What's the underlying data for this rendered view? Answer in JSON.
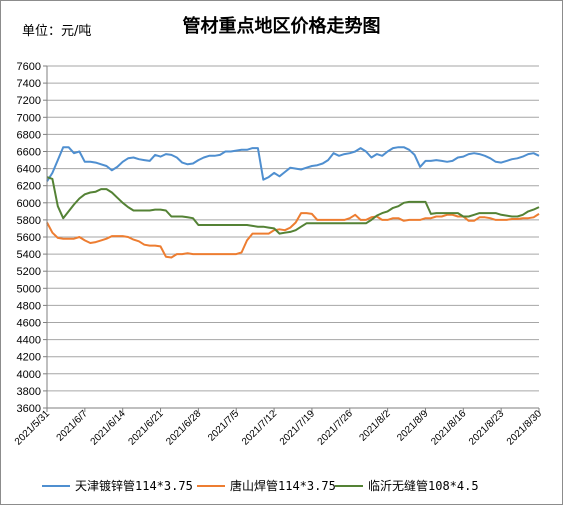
{
  "chart_data": {
    "type": "line",
    "title": "管材重点地区价格走势图",
    "unit_label": "单位：元/吨",
    "ylim": [
      3600,
      7600
    ],
    "y_step": 200,
    "x_tick_labels": [
      "2021/5/31",
      "2021/6/7",
      "2021/6/14",
      "2021/6/21",
      "2021/6/28",
      "2021/7/5",
      "2021/7/12",
      "2021/7/19",
      "2021/7/26",
      "2021/8/2",
      "2021/8/9",
      "2021/8/16",
      "2021/8/23",
      "2021/8/30"
    ],
    "x_range_days": [
      0,
      91
    ],
    "grid": "horizontal",
    "legend_position": "bottom",
    "series": [
      {
        "name": "天津镀锌管114*3.75",
        "color": "#4f8fd0",
        "points": [
          [
            0,
            6250
          ],
          [
            1,
            6350
          ],
          [
            2,
            6500
          ],
          [
            3,
            6650
          ],
          [
            4,
            6650
          ],
          [
            5,
            6580
          ],
          [
            6,
            6600
          ],
          [
            7,
            6480
          ],
          [
            8,
            6480
          ],
          [
            9,
            6470
          ],
          [
            10,
            6450
          ],
          [
            11,
            6430
          ],
          [
            12,
            6380
          ],
          [
            13,
            6420
          ],
          [
            14,
            6480
          ],
          [
            15,
            6520
          ],
          [
            16,
            6530
          ],
          [
            17,
            6510
          ],
          [
            18,
            6500
          ],
          [
            19,
            6490
          ],
          [
            20,
            6560
          ],
          [
            21,
            6540
          ],
          [
            22,
            6570
          ],
          [
            23,
            6560
          ],
          [
            24,
            6530
          ],
          [
            25,
            6470
          ],
          [
            26,
            6450
          ],
          [
            27,
            6460
          ],
          [
            28,
            6500
          ],
          [
            29,
            6530
          ],
          [
            30,
            6550
          ],
          [
            31,
            6550
          ],
          [
            32,
            6560
          ],
          [
            33,
            6600
          ],
          [
            34,
            6600
          ],
          [
            35,
            6610
          ],
          [
            36,
            6620
          ],
          [
            37,
            6620
          ],
          [
            38,
            6640
          ],
          [
            39,
            6640
          ],
          [
            40,
            6270
          ],
          [
            41,
            6300
          ],
          [
            42,
            6350
          ],
          [
            43,
            6310
          ],
          [
            44,
            6360
          ],
          [
            45,
            6410
          ],
          [
            46,
            6400
          ],
          [
            47,
            6390
          ],
          [
            48,
            6410
          ],
          [
            49,
            6430
          ],
          [
            50,
            6440
          ],
          [
            51,
            6460
          ],
          [
            52,
            6500
          ],
          [
            53,
            6580
          ],
          [
            54,
            6550
          ],
          [
            55,
            6570
          ],
          [
            56,
            6580
          ],
          [
            57,
            6600
          ],
          [
            58,
            6640
          ],
          [
            59,
            6600
          ],
          [
            60,
            6530
          ],
          [
            61,
            6570
          ],
          [
            62,
            6550
          ],
          [
            63,
            6600
          ],
          [
            64,
            6640
          ],
          [
            65,
            6650
          ],
          [
            66,
            6650
          ],
          [
            67,
            6620
          ],
          [
            68,
            6560
          ],
          [
            69,
            6420
          ],
          [
            70,
            6490
          ],
          [
            71,
            6490
          ],
          [
            72,
            6500
          ],
          [
            73,
            6490
          ],
          [
            74,
            6480
          ],
          [
            75,
            6490
          ],
          [
            76,
            6530
          ],
          [
            77,
            6540
          ],
          [
            78,
            6570
          ],
          [
            79,
            6580
          ],
          [
            80,
            6570
          ],
          [
            81,
            6550
          ],
          [
            82,
            6520
          ],
          [
            83,
            6480
          ],
          [
            84,
            6470
          ],
          [
            85,
            6490
          ],
          [
            86,
            6510
          ],
          [
            87,
            6520
          ],
          [
            88,
            6540
          ],
          [
            89,
            6570
          ],
          [
            90,
            6580
          ],
          [
            91,
            6550
          ]
        ]
      },
      {
        "name": "唐山焊管114*3.75",
        "color": "#ed7d31",
        "points": [
          [
            0,
            5770
          ],
          [
            1,
            5650
          ],
          [
            2,
            5590
          ],
          [
            3,
            5580
          ],
          [
            4,
            5580
          ],
          [
            5,
            5580
          ],
          [
            6,
            5600
          ],
          [
            7,
            5560
          ],
          [
            8,
            5530
          ],
          [
            9,
            5540
          ],
          [
            10,
            5560
          ],
          [
            11,
            5580
          ],
          [
            12,
            5610
          ],
          [
            13,
            5610
          ],
          [
            14,
            5610
          ],
          [
            15,
            5600
          ],
          [
            16,
            5570
          ],
          [
            17,
            5550
          ],
          [
            18,
            5510
          ],
          [
            19,
            5500
          ],
          [
            20,
            5500
          ],
          [
            21,
            5490
          ],
          [
            22,
            5370
          ],
          [
            23,
            5360
          ],
          [
            24,
            5400
          ],
          [
            25,
            5400
          ],
          [
            26,
            5410
          ],
          [
            27,
            5400
          ],
          [
            28,
            5400
          ],
          [
            29,
            5400
          ],
          [
            30,
            5400
          ],
          [
            31,
            5400
          ],
          [
            32,
            5400
          ],
          [
            33,
            5400
          ],
          [
            34,
            5400
          ],
          [
            35,
            5400
          ],
          [
            36,
            5420
          ],
          [
            37,
            5560
          ],
          [
            38,
            5640
          ],
          [
            39,
            5640
          ],
          [
            40,
            5640
          ],
          [
            41,
            5640
          ],
          [
            42,
            5680
          ],
          [
            43,
            5690
          ],
          [
            44,
            5680
          ],
          [
            45,
            5710
          ],
          [
            46,
            5770
          ],
          [
            47,
            5880
          ],
          [
            48,
            5880
          ],
          [
            49,
            5870
          ],
          [
            50,
            5800
          ],
          [
            51,
            5800
          ],
          [
            52,
            5800
          ],
          [
            53,
            5800
          ],
          [
            54,
            5800
          ],
          [
            55,
            5800
          ],
          [
            56,
            5820
          ],
          [
            57,
            5860
          ],
          [
            58,
            5800
          ],
          [
            59,
            5800
          ],
          [
            60,
            5830
          ],
          [
            61,
            5840
          ],
          [
            62,
            5800
          ],
          [
            63,
            5800
          ],
          [
            64,
            5820
          ],
          [
            65,
            5820
          ],
          [
            66,
            5790
          ],
          [
            67,
            5800
          ],
          [
            68,
            5800
          ],
          [
            69,
            5800
          ],
          [
            70,
            5820
          ],
          [
            71,
            5820
          ],
          [
            72,
            5840
          ],
          [
            73,
            5840
          ],
          [
            74,
            5860
          ],
          [
            75,
            5860
          ],
          [
            76,
            5840
          ],
          [
            77,
            5840
          ],
          [
            78,
            5790
          ],
          [
            79,
            5790
          ],
          [
            80,
            5830
          ],
          [
            81,
            5830
          ],
          [
            82,
            5820
          ],
          [
            83,
            5800
          ],
          [
            84,
            5800
          ],
          [
            85,
            5800
          ],
          [
            86,
            5810
          ],
          [
            87,
            5810
          ],
          [
            88,
            5820
          ],
          [
            89,
            5820
          ],
          [
            90,
            5830
          ],
          [
            91,
            5870
          ]
        ]
      },
      {
        "name": "临沂无缝管108*4.5",
        "color": "#548235",
        "points": [
          [
            0,
            6300
          ],
          [
            1,
            6280
          ],
          [
            2,
            5960
          ],
          [
            3,
            5820
          ],
          [
            4,
            5900
          ],
          [
            5,
            5980
          ],
          [
            6,
            6050
          ],
          [
            7,
            6100
          ],
          [
            8,
            6120
          ],
          [
            9,
            6130
          ],
          [
            10,
            6160
          ],
          [
            11,
            6160
          ],
          [
            12,
            6120
          ],
          [
            13,
            6060
          ],
          [
            14,
            6000
          ],
          [
            15,
            5950
          ],
          [
            16,
            5910
          ],
          [
            17,
            5910
          ],
          [
            18,
            5910
          ],
          [
            19,
            5910
          ],
          [
            20,
            5920
          ],
          [
            21,
            5920
          ],
          [
            22,
            5910
          ],
          [
            23,
            5840
          ],
          [
            24,
            5840
          ],
          [
            25,
            5840
          ],
          [
            26,
            5830
          ],
          [
            27,
            5820
          ],
          [
            28,
            5740
          ],
          [
            29,
            5740
          ],
          [
            30,
            5740
          ],
          [
            31,
            5740
          ],
          [
            32,
            5740
          ],
          [
            33,
            5740
          ],
          [
            34,
            5740
          ],
          [
            35,
            5740
          ],
          [
            36,
            5740
          ],
          [
            37,
            5740
          ],
          [
            38,
            5730
          ],
          [
            39,
            5720
          ],
          [
            40,
            5720
          ],
          [
            41,
            5710
          ],
          [
            42,
            5700
          ],
          [
            43,
            5640
          ],
          [
            44,
            5650
          ],
          [
            45,
            5660
          ],
          [
            46,
            5680
          ],
          [
            47,
            5720
          ],
          [
            48,
            5760
          ],
          [
            49,
            5760
          ],
          [
            50,
            5760
          ],
          [
            51,
            5760
          ],
          [
            52,
            5760
          ],
          [
            53,
            5760
          ],
          [
            54,
            5760
          ],
          [
            55,
            5760
          ],
          [
            56,
            5760
          ],
          [
            57,
            5760
          ],
          [
            58,
            5760
          ],
          [
            59,
            5760
          ],
          [
            60,
            5800
          ],
          [
            61,
            5850
          ],
          [
            62,
            5880
          ],
          [
            63,
            5900
          ],
          [
            64,
            5940
          ],
          [
            65,
            5960
          ],
          [
            66,
            6000
          ],
          [
            67,
            6010
          ],
          [
            68,
            6010
          ],
          [
            69,
            6010
          ],
          [
            70,
            6010
          ],
          [
            71,
            5870
          ],
          [
            72,
            5880
          ],
          [
            73,
            5880
          ],
          [
            74,
            5880
          ],
          [
            75,
            5880
          ],
          [
            76,
            5880
          ],
          [
            77,
            5840
          ],
          [
            78,
            5840
          ],
          [
            79,
            5860
          ],
          [
            80,
            5880
          ],
          [
            81,
            5880
          ],
          [
            82,
            5880
          ],
          [
            83,
            5880
          ],
          [
            84,
            5860
          ],
          [
            85,
            5850
          ],
          [
            86,
            5840
          ],
          [
            87,
            5840
          ],
          [
            88,
            5860
          ],
          [
            89,
            5900
          ],
          [
            90,
            5920
          ],
          [
            91,
            5950
          ]
        ]
      }
    ]
  }
}
